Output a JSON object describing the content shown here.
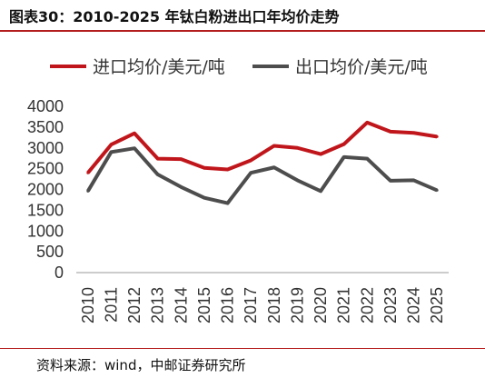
{
  "header": {
    "title": "图表30：2010-2025 年钛白粉进出口年均价走势"
  },
  "footer": {
    "source": "资料来源：wind，中邮证券研究所"
  },
  "chart_data": {
    "type": "line",
    "title": "",
    "xlabel": "",
    "ylabel": "",
    "x": [
      "2010",
      "2011",
      "2012",
      "2013",
      "2014",
      "2015",
      "2016",
      "2017",
      "2018",
      "2019",
      "2020",
      "2021",
      "2022",
      "2023",
      "2024",
      "2025"
    ],
    "yticks": [
      "0",
      "500",
      "1000",
      "1500",
      "2000",
      "2500",
      "3000",
      "3500",
      "4000"
    ],
    "ylim": [
      0,
      4000
    ],
    "grid": false,
    "legend_position": "top",
    "series": [
      {
        "name": "进口均价/美元/吨",
        "color": "#c0161b",
        "values": [
          2400,
          3080,
          3350,
          2740,
          2730,
          2520,
          2480,
          2700,
          3050,
          3000,
          2850,
          3090,
          3610,
          3390,
          3360,
          3270
        ]
      },
      {
        "name": "出口均价/美元/吨",
        "color": "#4d4d4d",
        "values": [
          1960,
          2900,
          2990,
          2360,
          2060,
          1800,
          1670,
          2400,
          2530,
          2220,
          1960,
          2780,
          2740,
          2210,
          2220,
          1980
        ]
      }
    ]
  }
}
